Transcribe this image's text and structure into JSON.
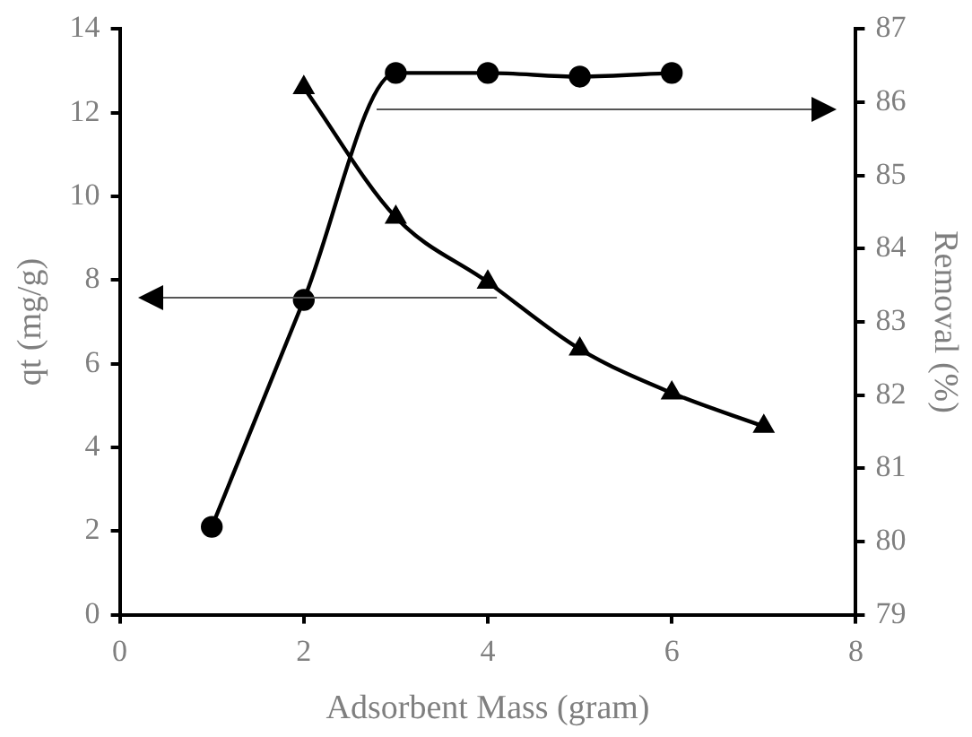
{
  "chart_data": {
    "type": "line",
    "xlabel": "Adsorbent Mass (gram)",
    "ylabel": "qt (mg/g)",
    "y2label": "Removal (%)",
    "xlim": [
      0,
      8
    ],
    "xticks": [
      0,
      2,
      4,
      6,
      8
    ],
    "ylim": [
      0,
      14
    ],
    "yticks": [
      0,
      2,
      4,
      6,
      8,
      10,
      12,
      14
    ],
    "y2lim": [
      79,
      87
    ],
    "y2ticks": [
      79,
      80,
      81,
      82,
      83,
      84,
      85,
      86,
      87
    ],
    "grid": false,
    "legend": false,
    "line_style": "solid",
    "series": [
      {
        "color": "#000000",
        "marker": "triangle",
        "x": [
          2,
          3,
          4,
          5,
          6,
          7
        ],
        "values": [
          12.6,
          9.5,
          7.95,
          6.35,
          5.3,
          4.5
        ]
      },
      {
        "color": "#000000",
        "marker": "circle",
        "axis": "y2",
        "x": [
          1,
          2,
          3,
          4,
          5,
          6
        ],
        "values": [
          80.2,
          83.3,
          86.4,
          86.4,
          86.35,
          86.4
        ]
      }
    ]
  }
}
